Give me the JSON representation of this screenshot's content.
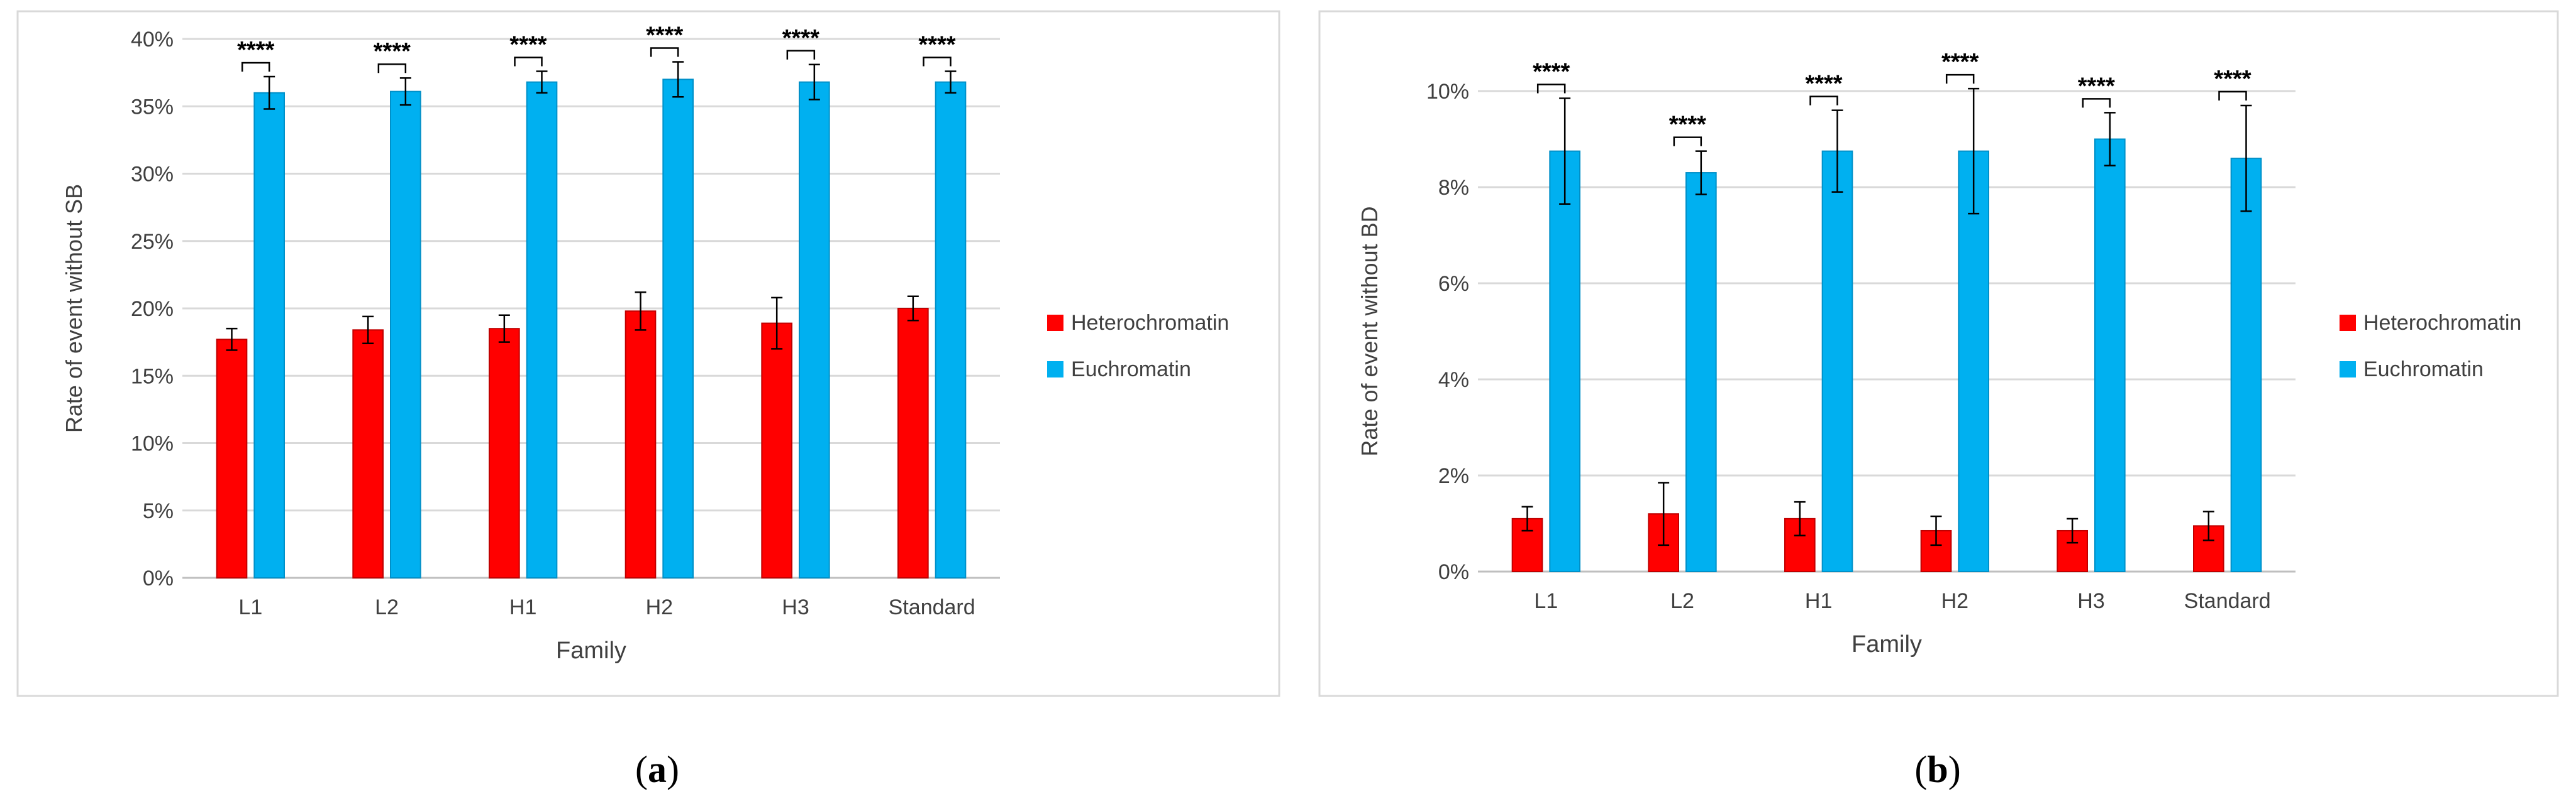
{
  "chart_data": [
    {
      "type": "bar",
      "panel_label": "a",
      "title": "",
      "xlabel": "Family",
      "ylabel": "Rate of event without SB",
      "ylim": [
        0,
        40
      ],
      "yticks": [
        0,
        5,
        10,
        15,
        20,
        25,
        30,
        35,
        40
      ],
      "ytick_labels": [
        "0%",
        "5%",
        "10%",
        "15%",
        "20%",
        "25%",
        "30%",
        "35%",
        "40%"
      ],
      "grid": true,
      "legend_position": "right",
      "categories": [
        "L1",
        "L2",
        "H1",
        "H2",
        "H3",
        "Standard"
      ],
      "series": [
        {
          "name": "Heterochromatin",
          "color": "#ff0000",
          "values": [
            17.7,
            18.4,
            18.5,
            19.8,
            18.9,
            20.0
          ],
          "errors": [
            0.8,
            1.0,
            1.0,
            1.4,
            1.9,
            0.9
          ]
        },
        {
          "name": "Euchromatin",
          "color": "#00b0f0",
          "values": [
            36.0,
            36.1,
            36.8,
            37.0,
            36.8,
            36.8
          ],
          "errors": [
            1.2,
            1.0,
            0.8,
            1.3,
            1.3,
            0.8
          ]
        }
      ],
      "significance": [
        "****",
        "****",
        "****",
        "****",
        "****",
        "****"
      ]
    },
    {
      "type": "bar",
      "panel_label": "b",
      "title": "",
      "xlabel": "Family",
      "ylabel": "Rate of event without BD",
      "ylim": [
        0,
        10
      ],
      "yticks": [
        0,
        2,
        4,
        6,
        8,
        10
      ],
      "ytick_labels": [
        "0%",
        "2%",
        "4%",
        "6%",
        "8%",
        "10%"
      ],
      "grid": true,
      "legend_position": "right",
      "categories": [
        "L1",
        "L2",
        "H1",
        "H2",
        "H3",
        "Standard"
      ],
      "series": [
        {
          "name": "Heterochromatin",
          "color": "#ff0000",
          "values": [
            1.1,
            1.2,
            1.1,
            0.85,
            0.85,
            0.95
          ],
          "errors": [
            0.25,
            0.65,
            0.35,
            0.3,
            0.25,
            0.3
          ]
        },
        {
          "name": "Euchromatin",
          "color": "#00b0f0",
          "values": [
            8.75,
            8.3,
            8.75,
            8.75,
            9.0,
            8.6
          ],
          "errors": [
            1.1,
            0.45,
            0.85,
            1.3,
            0.55,
            1.1
          ]
        }
      ],
      "significance": [
        "****",
        "****",
        "****",
        "****",
        "****",
        "****"
      ]
    }
  ]
}
